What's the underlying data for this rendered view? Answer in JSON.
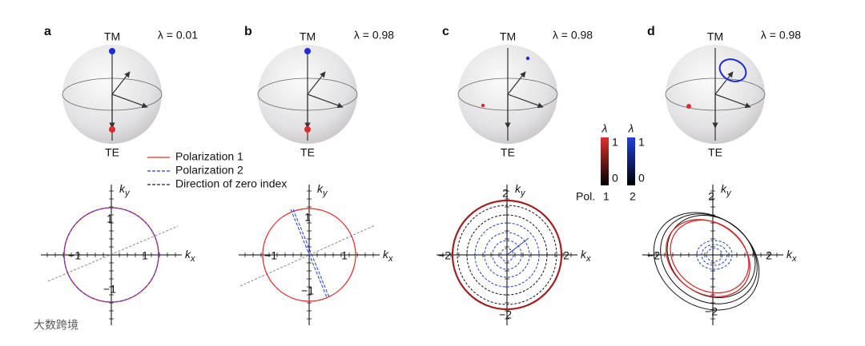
{
  "panels": [
    {
      "label": "a",
      "top": "TM",
      "bottom": "TE",
      "lambda": "λ = 0.01",
      "x_label": {
        "base": "k",
        "sub": "x"
      },
      "y_label": {
        "base": "k",
        "sub": "y"
      },
      "x_ticks": [
        "−1",
        "1"
      ],
      "y_ticks": [
        "1",
        "−1"
      ]
    },
    {
      "label": "b",
      "top": "TM",
      "bottom": "TE",
      "lambda": "λ = 0.98",
      "x_label": {
        "base": "k",
        "sub": "x"
      },
      "y_label": {
        "base": "k",
        "sub": "y"
      },
      "x_ticks": [
        "−1",
        "1"
      ],
      "y_ticks": [
        "1",
        "−1"
      ]
    },
    {
      "label": "c",
      "top": "TM",
      "bottom": "TE",
      "lambda": "λ = 0.98",
      "x_label": {
        "base": "k",
        "sub": "x"
      },
      "y_label": {
        "base": "k",
        "sub": "y"
      },
      "x_ticks": [
        "−2",
        "2"
      ],
      "y_ticks": [
        "2",
        "−2"
      ]
    },
    {
      "label": "d",
      "top": "TM",
      "bottom": "TE",
      "lambda": "λ = 0.98",
      "x_label": {
        "base": "k",
        "sub": "x"
      },
      "y_label": {
        "base": "k",
        "sub": "y"
      },
      "x_ticks": [
        "−2",
        "2"
      ],
      "y_ticks": [
        "2",
        "−2"
      ]
    }
  ],
  "legend": [
    "Polarization 1",
    "Polarization 2",
    "Direction of zero index"
  ],
  "colorbars": {
    "label": "Pol.",
    "bars": [
      {
        "title": "λ",
        "max": "1",
        "min": "0",
        "pol": "1"
      },
      {
        "title": "λ",
        "max": "1",
        "min": "0",
        "pol": "2"
      }
    ]
  },
  "watermark": "大数跨境"
}
